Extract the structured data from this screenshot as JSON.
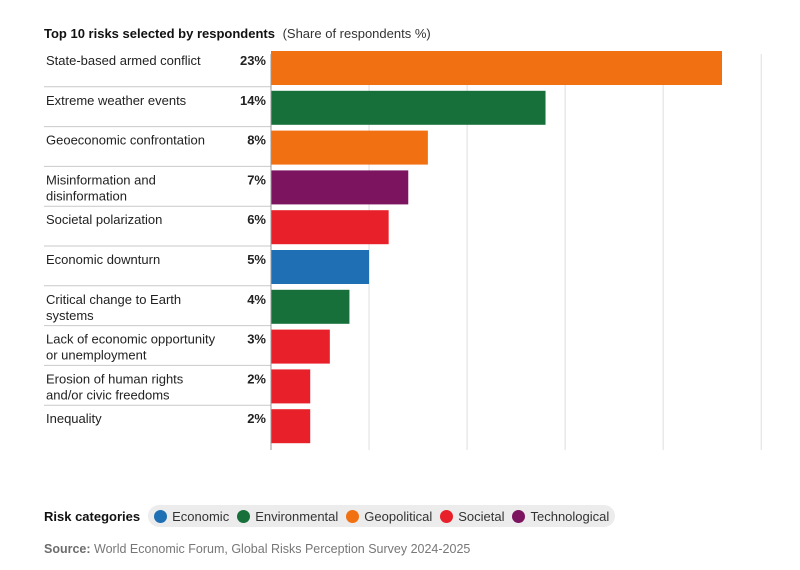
{
  "title": {
    "main": "Top 10 risks selected by respondents",
    "sub": "(Share of respondents %)"
  },
  "chart_data": {
    "type": "bar",
    "orientation": "horizontal",
    "unit": "%",
    "xlim": [
      0,
      25
    ],
    "grid": true,
    "categories": [
      [
        "State-based armed conflict"
      ],
      [
        "Extreme weather events"
      ],
      [
        "Geoeconomic confrontation"
      ],
      [
        "Misinformation and",
        "disinformation"
      ],
      [
        "Societal polarization"
      ],
      [
        "Economic downturn"
      ],
      [
        "Critical change to Earth",
        "systems"
      ],
      [
        "Lack of economic opportunity",
        "or unemployment"
      ],
      [
        "Erosion of human rights",
        "and/or civic freedoms"
      ],
      [
        "Inequality"
      ]
    ],
    "values": [
      23,
      14,
      8,
      7,
      6,
      5,
      4,
      3,
      2,
      2
    ],
    "value_labels": [
      "23%",
      "14%",
      "8%",
      "7%",
      "6%",
      "5%",
      "4%",
      "3%",
      "2%",
      "2%"
    ],
    "bar_categories": [
      "Geopolitical",
      "Environmental",
      "Geopolitical",
      "Technological",
      "Societal",
      "Economic",
      "Environmental",
      "Societal",
      "Societal",
      "Societal"
    ]
  },
  "legend": {
    "heading": "Risk categories",
    "items": [
      {
        "label": "Economic",
        "color": "#1f6fb5"
      },
      {
        "label": "Environmental",
        "color": "#17703a"
      },
      {
        "label": "Geopolitical",
        "color": "#f07012"
      },
      {
        "label": "Societal",
        "color": "#e8202a"
      },
      {
        "label": "Technological",
        "color": "#7c1460"
      }
    ]
  },
  "source": {
    "label": "Source:",
    "text": "World Economic Forum, Global Risks Perception Survey 2024-2025"
  }
}
